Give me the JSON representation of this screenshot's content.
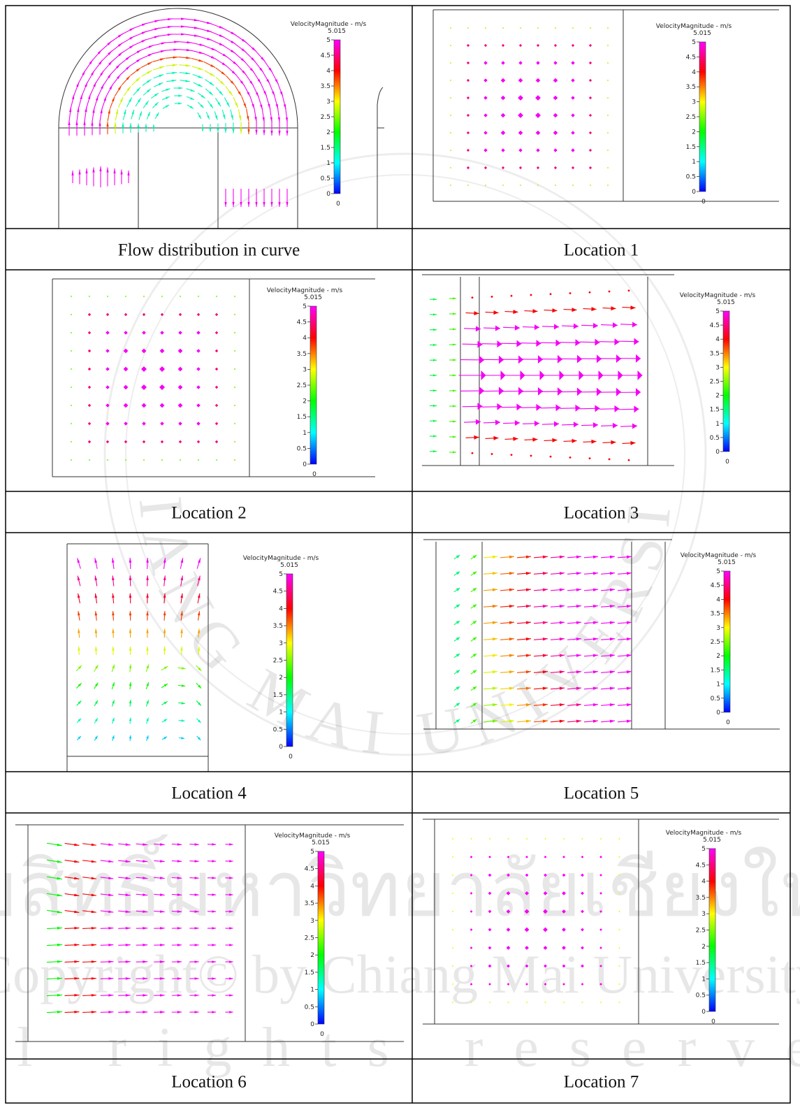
{
  "figure": {
    "panels": [
      {
        "caption": "Flow distribution in curve",
        "legend": {
          "title": "VelocityMagnitude - m/s",
          "max": 5.015,
          "ticks": [
            5,
            4.5,
            4,
            3.5,
            3,
            2.5,
            2,
            1.5,
            1,
            0.5,
            0
          ],
          "min": 0
        }
      },
      {
        "caption": "Location 1",
        "legend": {
          "title": "VelocityMagnitude - m/s",
          "max": 5.015,
          "ticks": [
            5,
            4.5,
            4,
            3.5,
            3,
            2.5,
            2,
            1.5,
            1,
            0.5,
            0
          ],
          "min": 0
        }
      },
      {
        "caption": "Location 2",
        "legend": {
          "title": "VelocityMagnitude - m/s",
          "max": 5.015,
          "ticks": [
            5,
            4.5,
            4,
            3.5,
            3,
            2.5,
            2,
            1.5,
            1,
            0.5,
            0
          ],
          "min": 0
        }
      },
      {
        "caption": "Location 3",
        "legend": {
          "title": "VelocityMagnitude - m/s",
          "max": 5.015,
          "ticks": [
            5,
            4.5,
            4,
            3.5,
            3,
            2.5,
            2,
            1.5,
            1,
            0.5,
            0
          ],
          "min": 0
        }
      },
      {
        "caption": "Location 4",
        "legend": {
          "title": "VelocityMagnitude - m/s",
          "max": 5.015,
          "ticks": [
            5,
            4.5,
            4,
            3.5,
            3,
            2.5,
            2,
            1.5,
            1,
            0.5,
            0
          ],
          "min": 0
        }
      },
      {
        "caption": "Location 5",
        "legend": {
          "title": "VelocityMagnitude - m/s",
          "max": 5.015,
          "ticks": [
            5,
            4.5,
            4,
            3.5,
            3,
            2.5,
            2,
            1.5,
            1,
            0.5,
            0
          ],
          "min": 0
        }
      },
      {
        "caption": "Location 6",
        "legend": {
          "title": "VelocityMagnitude - m/s",
          "max": 5.015,
          "ticks": [
            5,
            4.5,
            4,
            3.5,
            3,
            2.5,
            2,
            1.5,
            1,
            0.5,
            0
          ],
          "min": 0
        }
      },
      {
        "caption": "Location 7",
        "legend": {
          "title": "VelocityMagnitude - m/s",
          "max": 5.015,
          "ticks": [
            5,
            4.5,
            4,
            3.5,
            3,
            2.5,
            2,
            1.5,
            1,
            0.5,
            0
          ],
          "min": 0
        }
      }
    ]
  },
  "watermark": {
    "seal": "CHIANG MAI UNIVERSITY",
    "thai": "ลิขสิทธิ์มหาวิทยาลัยเชียงใหม่",
    "copyright": "Copyright© by Chiang Mai University",
    "rights": "All rights reserved"
  }
}
